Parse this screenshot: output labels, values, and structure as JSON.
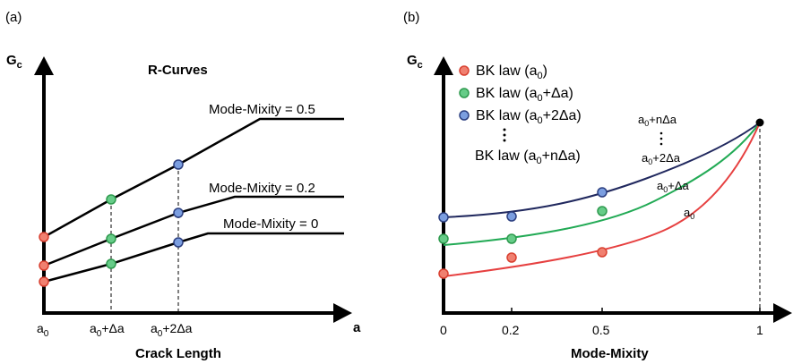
{
  "colors": {
    "red_fill": "#f08070",
    "red_stroke": "#d94030",
    "green_fill": "#66cc88",
    "green_stroke": "#2e9a4e",
    "blue_fill": "#7b9ee0",
    "blue_stroke": "#2c3f80",
    "navy_line": "#20285e",
    "green_line": "#22aa55",
    "red_line": "#e64040"
  },
  "panel_a": {
    "tag": "(a)",
    "y_axis_label": "G",
    "y_axis_sub": "c",
    "x_axis_label": "a",
    "x_title": "Crack Length",
    "title": "R-Curves",
    "ticks": [
      {
        "base": "a",
        "sub": "0",
        "rest": ""
      },
      {
        "base": "a",
        "sub": "0",
        "rest": "+Δa"
      },
      {
        "base": "a",
        "sub": "0",
        "rest": "+2Δa"
      }
    ],
    "curves": [
      {
        "label": "Mode-Mixity = 0.5"
      },
      {
        "label": "Mode-Mixity = 0.2"
      },
      {
        "label": "Mode-Mixity = 0"
      }
    ]
  },
  "panel_b": {
    "tag": "(b)",
    "y_axis_label": "G",
    "y_axis_sub": "c",
    "x_title": "Mode-Mixity",
    "ticks": [
      "0",
      "0.2",
      "0.5",
      "1"
    ],
    "legend": [
      {
        "prefix": "BK law (a",
        "sub": "0",
        "suffix": ")",
        "color": "red"
      },
      {
        "prefix": "BK law (a",
        "sub": "0",
        "suffix": "+Δa)",
        "color": "green"
      },
      {
        "prefix": "BK law (a",
        "sub": "0",
        "suffix": "+2Δa)",
        "color": "blue"
      },
      {
        "prefix": "BK law (a",
        "sub": "0",
        "suffix": "+nΔa)",
        "color": "none"
      }
    ],
    "curve_labels": [
      {
        "base": "a",
        "sub": "0",
        "rest": "+nΔa"
      },
      {
        "base": "a",
        "sub": "0",
        "rest": "+2Δa"
      },
      {
        "base": "a",
        "sub": "0",
        "rest": "+Δa"
      },
      {
        "base": "a",
        "sub": "0",
        "rest": ""
      }
    ]
  }
}
